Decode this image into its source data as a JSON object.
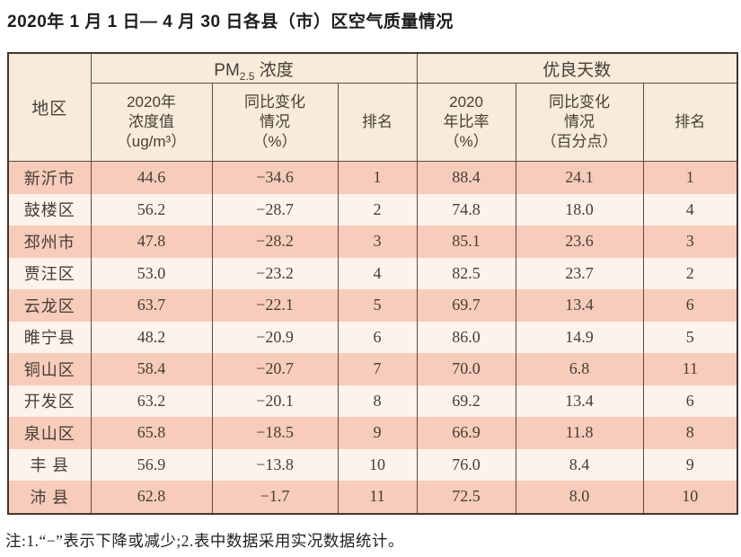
{
  "title": "2020年 1 月 1 日— 4 月 30 日各县（市）区空气质量情况",
  "table": {
    "header": {
      "region": "地区",
      "pm25_group": {
        "prefix": "PM",
        "sub": "2.5",
        "suffix": " 浓度"
      },
      "good_days_group": "优良天数",
      "sub": [
        "2020年\n浓度值\n（ug/m³）",
        "同比变化\n情况\n（%）",
        "排名",
        "2020\n年比率\n（%）",
        "同比变化\n情况\n（百分点）",
        "排名"
      ]
    },
    "rows": [
      {
        "region": "新沂市",
        "pm_value": "44.6",
        "pm_change": "−34.6",
        "pm_rank": "1",
        "ratio": "88.4",
        "ratio_change": "24.1",
        "ratio_rank": "1"
      },
      {
        "region": "鼓楼区",
        "pm_value": "56.2",
        "pm_change": "−28.7",
        "pm_rank": "2",
        "ratio": "74.8",
        "ratio_change": "18.0",
        "ratio_rank": "4"
      },
      {
        "region": "邳州市",
        "pm_value": "47.8",
        "pm_change": "−28.2",
        "pm_rank": "3",
        "ratio": "85.1",
        "ratio_change": "23.6",
        "ratio_rank": "3"
      },
      {
        "region": "贾汪区",
        "pm_value": "53.0",
        "pm_change": "−23.2",
        "pm_rank": "4",
        "ratio": "82.5",
        "ratio_change": "23.7",
        "ratio_rank": "2"
      },
      {
        "region": "云龙区",
        "pm_value": "63.7",
        "pm_change": "−22.1",
        "pm_rank": "5",
        "ratio": "69.7",
        "ratio_change": "13.4",
        "ratio_rank": "6"
      },
      {
        "region": "睢宁县",
        "pm_value": "48.2",
        "pm_change": "−20.9",
        "pm_rank": "6",
        "ratio": "86.0",
        "ratio_change": "14.9",
        "ratio_rank": "5"
      },
      {
        "region": "铜山区",
        "pm_value": "58.4",
        "pm_change": "−20.7",
        "pm_rank": "7",
        "ratio": "70.0",
        "ratio_change": "6.8",
        "ratio_rank": "11"
      },
      {
        "region": "开发区",
        "pm_value": "63.2",
        "pm_change": "−20.1",
        "pm_rank": "8",
        "ratio": "69.2",
        "ratio_change": "13.4",
        "ratio_rank": "6"
      },
      {
        "region": "泉山区",
        "pm_value": "65.8",
        "pm_change": "−18.5",
        "pm_rank": "9",
        "ratio": "66.9",
        "ratio_change": "11.8",
        "ratio_rank": "8"
      },
      {
        "region": "丰 县",
        "pm_value": "56.9",
        "pm_change": "−13.8",
        "pm_rank": "10",
        "ratio": "76.0",
        "ratio_change": "8.4",
        "ratio_rank": "9"
      },
      {
        "region": "沛 县",
        "pm_value": "62.8",
        "pm_change": "−1.7",
        "pm_rank": "11",
        "ratio": "72.5",
        "ratio_change": "8.0",
        "ratio_rank": "10"
      }
    ]
  },
  "note": "注:1.“−”表示下降或减少;2.表中数据采用实况数据统计。",
  "colors": {
    "row_odd": "#f8ccba",
    "row_even": "#fdf2ec",
    "header_bg": "#f7ebd9",
    "border_inner": "#5c4b41",
    "border_outer": "#443630",
    "text": "#433d38"
  }
}
